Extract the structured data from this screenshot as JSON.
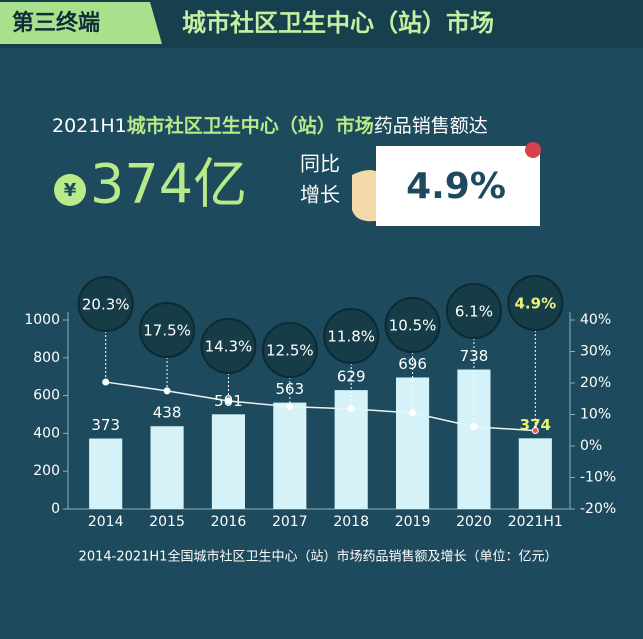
{
  "banner": {
    "tag": "第三终端",
    "title": "城市社区卫生中心（站）市场"
  },
  "headline": {
    "prefix": "2021H1",
    "highlight": "城市社区卫生中心（站）市场",
    "suffix": "药品销售额达",
    "currency": "¥",
    "amount": "374亿",
    "growth_label_1": "同比",
    "growth_label_2": "增长",
    "growth": "4.9%"
  },
  "chart_data": {
    "type": "bar",
    "categories": [
      "2014",
      "2015",
      "2016",
      "2017",
      "2018",
      "2019",
      "2020",
      "2021H1"
    ],
    "series": [
      {
        "type": "bar",
        "color": "#d4f2f7",
        "values": [
          373,
          438,
          501,
          563,
          629,
          696,
          738,
          374
        ]
      },
      {
        "type": "line",
        "axis": "y2",
        "color": "#e8f4f4",
        "values": [
          20.3,
          17.5,
          14.3,
          12.5,
          11.8,
          10.5,
          6.1,
          4.9
        ],
        "value_labels": [
          "20.3%",
          "17.5%",
          "14.3%",
          "12.5%",
          "11.8%",
          "10.5%",
          "6.1%",
          "4.9%"
        ]
      }
    ],
    "ylim": [
      0,
      1000
    ],
    "yticks": [
      0,
      200,
      400,
      600,
      800,
      1000
    ],
    "y2lim": [
      -20,
      40
    ],
    "y2ticks": [
      {
        "value": -20,
        "label": "-20%"
      },
      {
        "value": -10,
        "label": "-10%"
      },
      {
        "value": 0,
        "label": "0%"
      },
      {
        "value": 10,
        "label": "10%"
      },
      {
        "value": 20,
        "label": "20%"
      },
      {
        "value": 30,
        "label": "30%"
      },
      {
        "value": 40,
        "label": "40%"
      }
    ],
    "caption": "2014-2021H1全国城市社区卫生中心（站）市场药品销售额及增长（单位：亿元）"
  }
}
